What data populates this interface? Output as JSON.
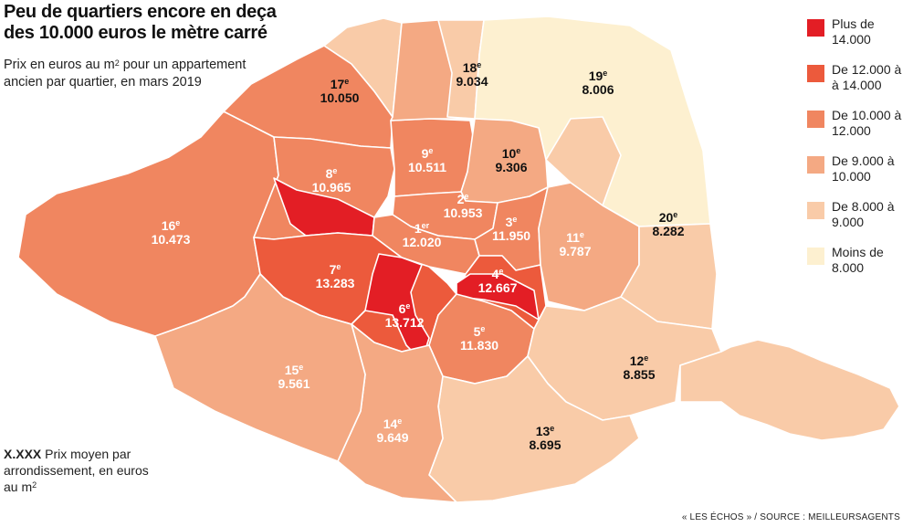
{
  "header": {
    "title": "Peu de quartiers encore en deça des 10.000 euros le mètre carré",
    "subtitle_before": "Prix en euros au m",
    "subtitle_sup": "2",
    "subtitle_after": " pour un appartement ancien par quartier, en mars 2019"
  },
  "key_note": {
    "sample": "X.XXX",
    "text": " Prix moyen par arrondissement, en euros au m",
    "sup": "2"
  },
  "legend": [
    {
      "label": "Plus de 14.000",
      "color": "#e31e25"
    },
    {
      "label": "De 12.000 à à 14.000",
      "color": "#ec5a3c"
    },
    {
      "label": "De 10.000 à 12.000",
      "color": "#f08660"
    },
    {
      "label": "De 9.000 à 10.000",
      "color": "#f4a983"
    },
    {
      "label": "De 8.000 à 9.000",
      "color": "#f9cba8"
    },
    {
      "label": "Moins de 8.000",
      "color": "#fdf0d0"
    }
  ],
  "arrondissements": [
    {
      "num": "1",
      "suffix": "er",
      "price": "12.020",
      "dark": false
    },
    {
      "num": "2",
      "suffix": "e",
      "price": "10.953",
      "dark": false
    },
    {
      "num": "3",
      "suffix": "e",
      "price": "11.950",
      "dark": false
    },
    {
      "num": "4",
      "suffix": "e",
      "price": "12.667",
      "dark": false
    },
    {
      "num": "5",
      "suffix": "e",
      "price": "11.830",
      "dark": false
    },
    {
      "num": "6",
      "suffix": "e",
      "price": "13.712",
      "dark": false
    },
    {
      "num": "7",
      "suffix": "e",
      "price": "13.283",
      "dark": false
    },
    {
      "num": "8",
      "suffix": "e",
      "price": "10.965",
      "dark": false
    },
    {
      "num": "9",
      "suffix": "e",
      "price": "10.511",
      "dark": false
    },
    {
      "num": "10",
      "suffix": "e",
      "price": "9.306",
      "dark": true
    },
    {
      "num": "11",
      "suffix": "e",
      "price": "9.787",
      "dark": false
    },
    {
      "num": "12",
      "suffix": "e",
      "price": "8.855",
      "dark": true
    },
    {
      "num": "13",
      "suffix": "e",
      "price": "8.695",
      "dark": true
    },
    {
      "num": "14",
      "suffix": "e",
      "price": "9.649",
      "dark": false
    },
    {
      "num": "15",
      "suffix": "e",
      "price": "9.561",
      "dark": false
    },
    {
      "num": "16",
      "suffix": "e",
      "price": "10.473",
      "dark": false
    },
    {
      "num": "17",
      "suffix": "e",
      "price": "10.050",
      "dark": true
    },
    {
      "num": "18",
      "suffix": "e",
      "price": "9.034",
      "dark": true
    },
    {
      "num": "19",
      "suffix": "e",
      "price": "8.006",
      "dark": true
    },
    {
      "num": "20",
      "suffix": "e",
      "price": "8.282",
      "dark": true
    }
  ],
  "source": "« LES ÉCHOS » / SOURCE : MEILLEURSAGENTS"
}
